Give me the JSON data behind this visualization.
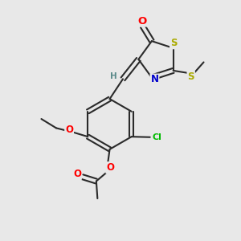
{
  "background_color": "#e8e8e8",
  "bond_color": "#2a2a2a",
  "atom_colors": {
    "O": "#ff0000",
    "N": "#0000cc",
    "S": "#aaaa00",
    "Cl": "#00bb00",
    "C": "#2a2a2a",
    "H": "#5a8a8a"
  },
  "figsize": [
    3.0,
    3.0
  ],
  "dpi": 100
}
